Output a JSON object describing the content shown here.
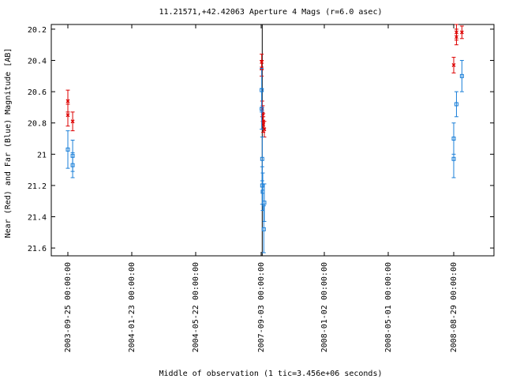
{
  "chart_data": {
    "type": "scatter",
    "title": "11.21571,+42.42063   Aperture 4 Mags (r=6.0 asec)",
    "xlabel": "Middle of observation (1 tic=3.456e+06 seconds)",
    "ylabel": "Near (Red) and Far (Blue) Magnitude [AB]",
    "y_inverted": true,
    "ylim": [
      21.65,
      20.17
    ],
    "y_ticks": [
      "20.2",
      "20.4",
      "20.6",
      "20.8",
      "21",
      "21.2",
      "21.4",
      "21.6"
    ],
    "x_tick_labels": [
      "2003-09-25 00:00:00",
      "2004-01-23 00:00:00",
      "2004-05-22 00:00:00",
      "2007-09-03 00:00:00",
      "2008-01-02 00:00:00",
      "2008-05-01 00:00:00",
      "2008-08-29 00:00:00"
    ],
    "grid": false,
    "legend": "none",
    "colors": {
      "near": "#dd0000",
      "far": "#1a7fd8",
      "frame": "#000000"
    },
    "series": [
      {
        "key": "near",
        "marker": "x",
        "points": [
          {
            "date": "2003-09-25",
            "y": 20.66,
            "err": 0.07
          },
          {
            "date": "2003-09-25",
            "y": 20.75,
            "err": 0.07
          },
          {
            "date": "2003-10-04",
            "y": 20.79,
            "err": 0.06
          },
          {
            "date": "2007-09-04",
            "y": 20.41,
            "err": 0.05
          },
          {
            "date": "2007-09-04",
            "y": 20.45,
            "err": 0.05
          },
          {
            "date": "2007-09-05",
            "y": 20.71,
            "err": 0.05
          },
          {
            "date": "2007-09-06",
            "y": 20.74,
            "err": 0.05
          },
          {
            "date": "2007-09-07",
            "y": 20.79,
            "err": 0.05
          },
          {
            "date": "2007-09-07",
            "y": 20.81,
            "err": 0.05
          },
          {
            "date": "2007-09-09",
            "y": 20.84,
            "err": 0.05
          },
          {
            "date": "2008-08-29",
            "y": 20.43,
            "err": 0.05
          },
          {
            "date": "2008-09-03",
            "y": 20.22,
            "err": 0.05
          },
          {
            "date": "2008-09-03",
            "y": 20.25,
            "err": 0.05
          },
          {
            "date": "2008-09-13",
            "y": 20.22,
            "err": 0.04
          }
        ]
      },
      {
        "key": "far",
        "marker": "square",
        "points": [
          {
            "date": "2003-09-25",
            "y": 20.97,
            "err": 0.12
          },
          {
            "date": "2003-10-04",
            "y": 21.01,
            "err": 0.1
          },
          {
            "date": "2003-10-04",
            "y": 21.07,
            "err": 0.08
          },
          {
            "date": "2007-09-04",
            "y": 20.59,
            "err": 0.14
          },
          {
            "date": "2007-09-04",
            "y": 20.71,
            "err": 0.13
          },
          {
            "date": "2007-09-05",
            "y": 21.03,
            "err": 0.14
          },
          {
            "date": "2007-09-05",
            "y": 21.2,
            "err": 0.12
          },
          {
            "date": "2007-09-06",
            "y": 21.24,
            "err": 0.12
          },
          {
            "date": "2007-09-09",
            "y": 21.31,
            "err": 0.12
          },
          {
            "date": "2007-09-08",
            "y": 21.48,
            "err": 0.15
          },
          {
            "date": "2008-08-29",
            "y": 20.9,
            "err": 0.1
          },
          {
            "date": "2008-08-29",
            "y": 21.03,
            "err": 0.12
          },
          {
            "date": "2008-09-03",
            "y": 20.68,
            "err": 0.08
          },
          {
            "date": "2008-09-13",
            "y": 20.5,
            "err": 0.1
          }
        ]
      }
    ],
    "vertical_line_date": "2007-09-05"
  }
}
